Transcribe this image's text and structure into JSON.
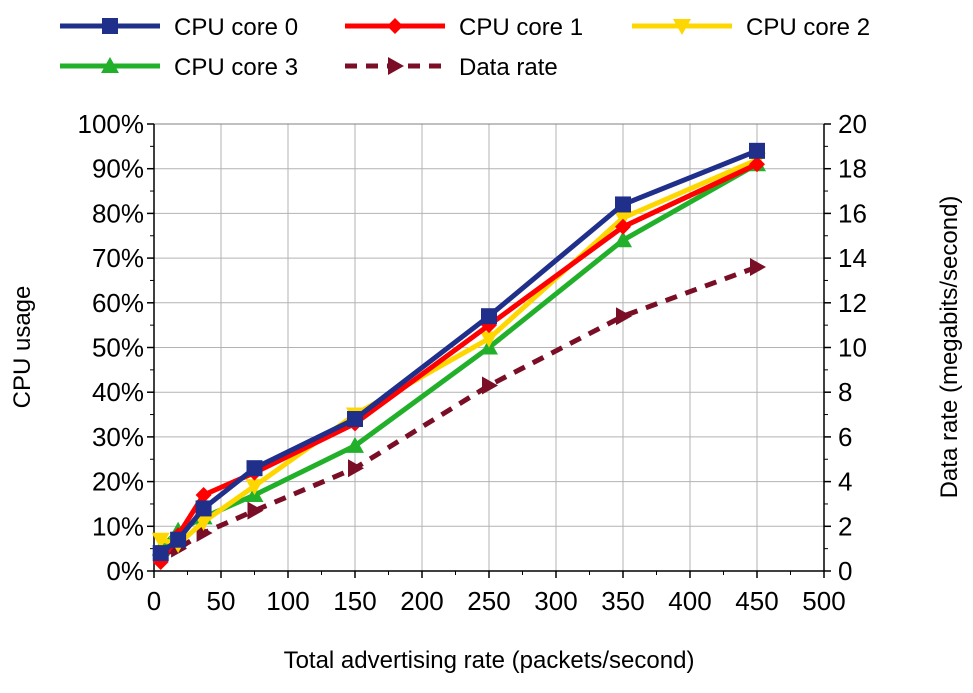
{
  "chart_data": {
    "type": "line",
    "title": "",
    "xlabel": "Total advertising rate (packets/second)",
    "ylabel": "CPU usage",
    "y2label": "Data rate (megabits/second)",
    "xlim": [
      0,
      500
    ],
    "ylim": [
      0,
      100
    ],
    "y2lim": [
      0,
      20
    ],
    "x_ticks": [
      0,
      50,
      100,
      150,
      200,
      250,
      300,
      350,
      400,
      450,
      500
    ],
    "y_ticks": [
      0,
      10,
      20,
      30,
      40,
      50,
      60,
      70,
      80,
      90,
      100
    ],
    "y_tick_labels": [
      "0%",
      "10%",
      "20%",
      "30%",
      "40%",
      "50%",
      "60%",
      "70%",
      "80%",
      "90%",
      "100%"
    ],
    "y2_ticks": [
      0,
      2,
      4,
      6,
      8,
      10,
      12,
      14,
      16,
      18,
      20
    ],
    "grid": true,
    "legend_position": "top",
    "x": [
      5,
      18,
      37,
      75,
      150,
      250,
      350,
      450
    ],
    "series": [
      {
        "name": "CPU core 0",
        "axis": "left",
        "color": "#1f2f8a",
        "marker": "square",
        "dash": false,
        "values": [
          4,
          7,
          14,
          23,
          34,
          57,
          82,
          94
        ]
      },
      {
        "name": "CPU core 1",
        "axis": "left",
        "color": "#ff0000",
        "marker": "diamond",
        "dash": false,
        "values": [
          2,
          8,
          17,
          22,
          33,
          55,
          77,
          91
        ]
      },
      {
        "name": "CPU core 2",
        "axis": "left",
        "color": "#ffd700",
        "marker": "triangle-down",
        "dash": false,
        "values": [
          7,
          6,
          11,
          19,
          35,
          52,
          79,
          92
        ]
      },
      {
        "name": "CPU core 3",
        "axis": "left",
        "color": "#22b02b",
        "marker": "triangle-up",
        "dash": false,
        "values": [
          5,
          9,
          12,
          17,
          28,
          50,
          74,
          91
        ]
      },
      {
        "name": "Data rate",
        "axis": "right",
        "color": "#7a0e26",
        "marker": "triangle-right",
        "dash": true,
        "values": [
          0.7,
          1.0,
          1.7,
          2.7,
          4.6,
          8.3,
          11.4,
          13.6
        ]
      }
    ]
  }
}
